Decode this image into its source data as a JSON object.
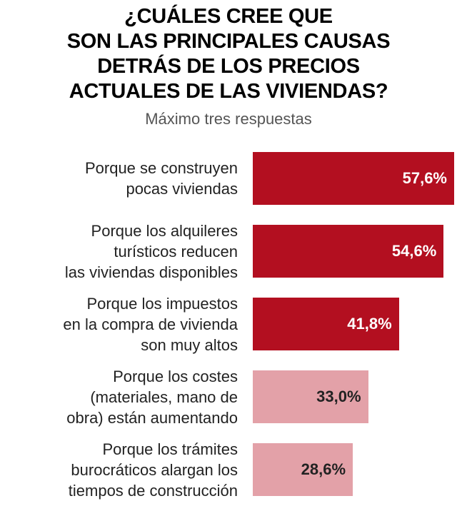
{
  "chart_data": {
    "type": "bar",
    "orientation": "horizontal",
    "title": "¿CUÁLES CREE QUE\nSON LAS PRINCIPALES CAUSAS\nDETRÁS DE LOS PRECIOS\nACTUALES DE LAS VIVIENDAS?",
    "subtitle": "Máximo tres respuestas",
    "categories": [
      "Porque se construyen\npocas viviendas",
      "Porque los alquileres\nturísticos reducen\nlas viviendas disponibles",
      "Porque los impuestos\nen la compra de vivienda\nson muy altos",
      "Porque los costes\n(materiales, mano de\nobra) están aumentando",
      "Porque los trámites\nburocráticos alargan los\ntiempos de construcción"
    ],
    "values": [
      57.6,
      54.6,
      41.8,
      33.0,
      28.6
    ],
    "value_labels": [
      "57,6%",
      "54,6%",
      "41,8%",
      "33,0%",
      "28,6%"
    ],
    "colors": [
      "#b30f20",
      "#b30f20",
      "#b30f20",
      "#e3a1a8",
      "#e3a1a8"
    ]
  }
}
